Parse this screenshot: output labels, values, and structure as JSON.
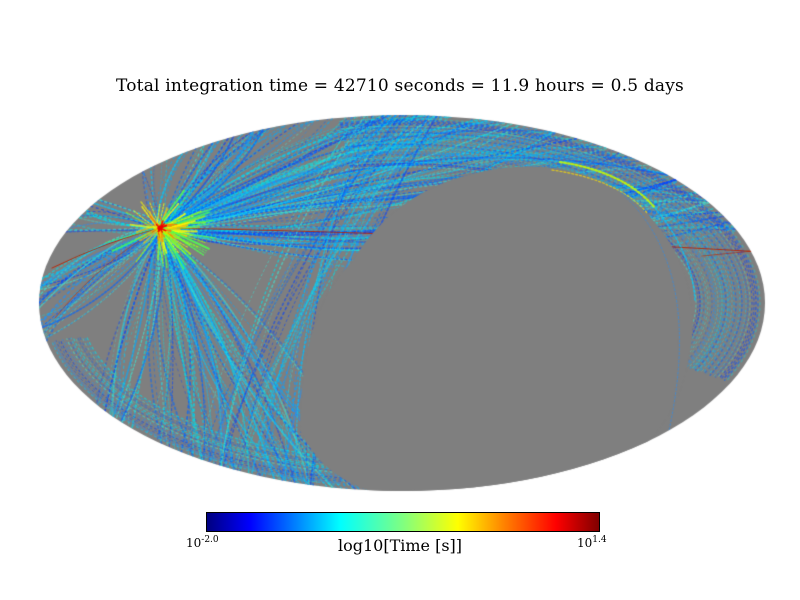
{
  "title": "Total integration time = 42710 seconds = 11.9 hours = 0.5 days",
  "colorbar": {
    "label": "log10[Time [s]]",
    "min_base": "10",
    "min_exp": "-2.0",
    "max_base": "10",
    "max_exp": "1.4",
    "colormap": "jet",
    "stops": [
      "#000080 0%",
      "#0000ff 11%",
      "#00ffff 34%",
      "#80ff80 50%",
      "#ffff00 64%",
      "#ff8000 76%",
      "#ff0000 89%",
      "#800000 100%"
    ]
  },
  "map": {
    "projection": "mollweide",
    "base_color": "#7f7f7f",
    "scan_palette": [
      "#0040ff",
      "#0066ff",
      "#1e90ff",
      "#00aaff",
      "#00c8ff",
      "#00e0e8",
      "#40e0d0"
    ],
    "hot_palette": [
      "#50ff50",
      "#b0ff00",
      "#ffff00",
      "#ffc800",
      "#ff7800",
      "#ff3000"
    ],
    "hotspot_color": "#ee0000",
    "scanline_red": "#bb2200",
    "crescent_green": "#c8ff00",
    "crescent_yellow": "#ffe000",
    "void_edge_blue": "#2090ff"
  },
  "chart_data": {
    "type": "heatmap",
    "title": "Total integration time = 42710 seconds = 11.9 hours = 0.5 days",
    "projection": "mollweide",
    "quantity": "integration time per sky position",
    "value_unit": "seconds",
    "value_scale": "log10",
    "colorbar_label": "log10[Time [s]]",
    "color_range_log10": [
      -2.0,
      1.4
    ],
    "colormap": "jet",
    "total_integration": {
      "seconds": 42710,
      "hours": 11.9,
      "days": 0.5
    },
    "unobserved_regions_color": "gray",
    "features": [
      "deep-exposure hotspot (yellow/orange/red, up to ~10^1.4 s) at upper-left of map",
      "fan of scan arcs radiating from hotspot across left hemisphere, mostly blue-cyan (~10^-1 s)",
      "striped scan bands hugging the top-right and lower-left rims",
      "large unobserved gray void covering center-right and bottom-center",
      "thin green-yellow arc along the top-right edge of the void"
    ]
  }
}
